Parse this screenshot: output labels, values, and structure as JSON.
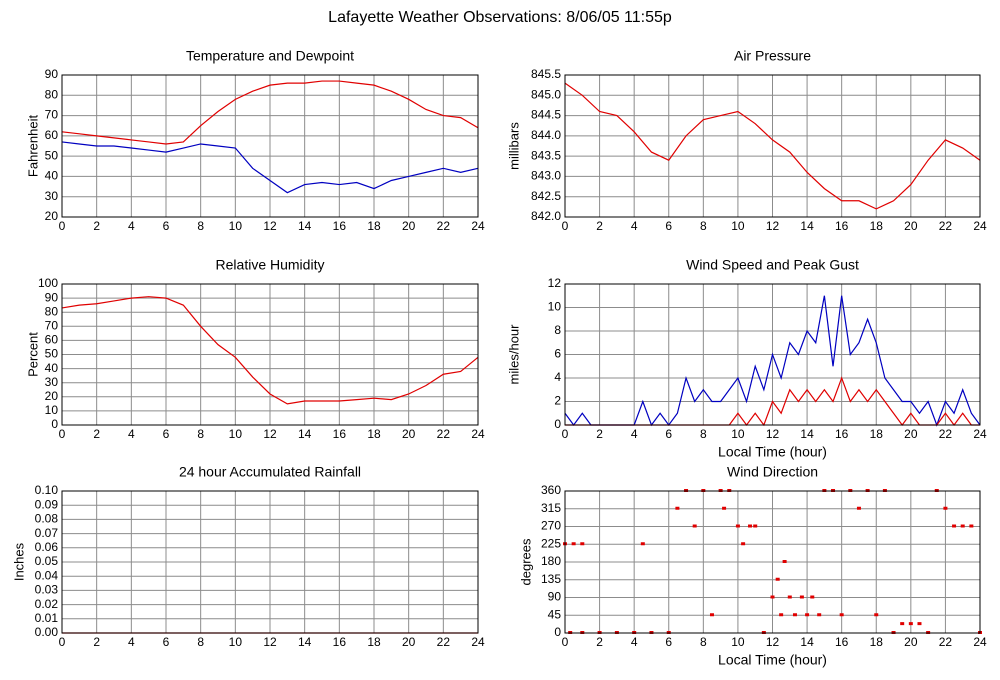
{
  "title": "Lafayette Weather Observations: 8/06/05 11:55p",
  "chart_data": [
    {
      "type": "line",
      "title": "Temperature and Dewpoint",
      "ylabel": "Fahrenheit",
      "grid": true,
      "x": [
        0,
        1,
        2,
        3,
        4,
        5,
        6,
        7,
        8,
        9,
        10,
        11,
        12,
        13,
        14,
        15,
        16,
        17,
        18,
        19,
        20,
        21,
        22,
        23,
        24
      ],
      "series": [
        {
          "color": "#e00000",
          "values": [
            62,
            61,
            60,
            59,
            58,
            57,
            56,
            57,
            65,
            72,
            78,
            82,
            85,
            86,
            86,
            87,
            87,
            86,
            85,
            82,
            78,
            73,
            70,
            69,
            64
          ]
        },
        {
          "color": "#0000c0",
          "values": [
            57,
            56,
            55,
            55,
            54,
            53,
            52,
            54,
            56,
            55,
            54,
            44,
            38,
            32,
            36,
            37,
            36,
            37,
            34,
            38,
            40,
            42,
            44,
            42,
            44
          ]
        }
      ],
      "xlim": [
        0,
        24
      ],
      "xticks": [
        0,
        2,
        4,
        6,
        8,
        10,
        12,
        14,
        16,
        18,
        20,
        22,
        24
      ],
      "ylim": [
        20,
        90
      ],
      "yticks": [
        20,
        30,
        40,
        50,
        60,
        70,
        80,
        90
      ]
    },
    {
      "type": "line",
      "title": "Air Pressure",
      "ylabel": "millibars",
      "grid": true,
      "x": [
        0,
        1,
        2,
        3,
        4,
        5,
        6,
        7,
        8,
        9,
        10,
        11,
        12,
        13,
        14,
        15,
        16,
        17,
        18,
        19,
        20,
        21,
        22,
        23,
        24
      ],
      "series": [
        {
          "color": "#e00000",
          "values": [
            845.3,
            845.0,
            844.6,
            844.5,
            844.1,
            843.6,
            843.4,
            844.0,
            844.4,
            844.5,
            844.6,
            844.3,
            843.9,
            843.6,
            843.1,
            842.7,
            842.4,
            842.4,
            842.2,
            842.4,
            842.8,
            843.4,
            843.9,
            843.7,
            843.4
          ]
        }
      ],
      "xlim": [
        0,
        24
      ],
      "xticks": [
        0,
        2,
        4,
        6,
        8,
        10,
        12,
        14,
        16,
        18,
        20,
        22,
        24
      ],
      "ylim": [
        842,
        845.5
      ],
      "yticks": [
        {
          "value": 842,
          "label": "842.0"
        },
        842.5,
        {
          "value": 843,
          "label": "843.0"
        },
        843.5,
        {
          "value": 844,
          "label": "844.0"
        },
        844.5,
        {
          "value": 845,
          "label": "845.0"
        },
        845.5
      ]
    },
    {
      "type": "line",
      "title": "Relative Humidity",
      "ylabel": "Percent",
      "grid": true,
      "x": [
        0,
        1,
        2,
        3,
        4,
        5,
        6,
        7,
        8,
        9,
        10,
        11,
        12,
        13,
        14,
        15,
        16,
        17,
        18,
        19,
        20,
        21,
        22,
        23,
        24
      ],
      "series": [
        {
          "color": "#e00000",
          "values": [
            83,
            85,
            86,
            88,
            90,
            91,
            90,
            85,
            70,
            57,
            48,
            34,
            22,
            15,
            17,
            17,
            17,
            18,
            19,
            18,
            22,
            28,
            36,
            38,
            48
          ]
        }
      ],
      "xlim": [
        0,
        24
      ],
      "xticks": [
        0,
        2,
        4,
        6,
        8,
        10,
        12,
        14,
        16,
        18,
        20,
        22,
        24
      ],
      "ylim": [
        0,
        100
      ],
      "yticks": [
        0,
        10,
        20,
        30,
        40,
        50,
        60,
        70,
        80,
        90,
        100
      ]
    },
    {
      "type": "line",
      "title": "Wind Speed and Peak Gust",
      "ylabel": "miles/hour",
      "xlabel": "Local Time (hour)",
      "grid": true,
      "x": [
        0,
        0.5,
        1,
        1.5,
        2,
        2.5,
        3,
        3.5,
        4,
        4.5,
        5,
        5.5,
        6,
        6.5,
        7,
        7.5,
        8,
        8.5,
        9,
        9.5,
        10,
        10.5,
        11,
        11.5,
        12,
        12.5,
        13,
        13.5,
        14,
        14.5,
        15,
        15.5,
        16,
        16.5,
        17,
        17.5,
        18,
        18.5,
        19,
        19.5,
        20,
        20.5,
        21,
        21.5,
        22,
        22.5,
        23,
        23.5,
        24
      ],
      "series": [
        {
          "color": "#0000c0",
          "values": [
            1,
            0,
            1,
            0,
            0,
            0,
            0,
            0,
            0,
            2,
            0,
            1,
            0,
            1,
            4,
            2,
            3,
            2,
            2,
            3,
            4,
            2,
            5,
            3,
            6,
            4,
            7,
            6,
            8,
            7,
            11,
            5,
            11,
            6,
            7,
            9,
            7,
            4,
            3,
            2,
            2,
            1,
            2,
            0,
            2,
            1,
            3,
            1,
            0
          ]
        },
        {
          "color": "#e00000",
          "values": [
            0,
            0,
            0,
            0,
            0,
            0,
            0,
            0,
            0,
            0,
            0,
            0,
            0,
            0,
            0,
            0,
            0,
            0,
            0,
            0,
            1,
            0,
            1,
            0,
            2,
            1,
            3,
            2,
            3,
            2,
            3,
            2,
            4,
            2,
            3,
            2,
            3,
            2,
            1,
            0,
            1,
            0,
            0,
            0,
            1,
            0,
            1,
            0,
            0
          ]
        }
      ],
      "xlim": [
        0,
        24
      ],
      "xticks": [
        0,
        2,
        4,
        6,
        8,
        10,
        12,
        14,
        16,
        18,
        20,
        22,
        24
      ],
      "ylim": [
        0,
        12
      ],
      "yticks": [
        0,
        2,
        4,
        6,
        8,
        10,
        12
      ]
    },
    {
      "type": "line",
      "title": "24 hour Accumulated Rainfall",
      "ylabel": "Inches",
      "grid": true,
      "x": [
        0,
        24
      ],
      "series": [
        {
          "color": "#e00000",
          "values": [
            0,
            0
          ]
        }
      ],
      "xlim": [
        0,
        24
      ],
      "xticks": [
        0,
        2,
        4,
        6,
        8,
        10,
        12,
        14,
        16,
        18,
        20,
        22,
        24
      ],
      "ylim": [
        0,
        0.1
      ],
      "yticks": [
        {
          "value": 0,
          "label": "0.00"
        },
        0.01,
        0.02,
        0.03,
        0.04,
        0.05,
        0.06,
        0.07,
        0.08,
        0.09,
        {
          "value": 0.1,
          "label": "0.10"
        }
      ]
    },
    {
      "type": "scatter",
      "title": "Wind Direction",
      "ylabel": "degrees",
      "xlabel": "Local Time (hour)",
      "grid": true,
      "x": [
        0,
        0.5,
        1,
        0.3,
        1,
        2,
        3,
        4,
        4.5,
        5,
        6,
        6.5,
        7,
        7.5,
        8,
        8.5,
        9,
        9.2,
        9.5,
        10,
        10.3,
        10.7,
        11,
        11.5,
        12,
        12.3,
        12.5,
        12.7,
        13,
        13.3,
        13.7,
        14,
        14.3,
        14.7,
        15,
        15.5,
        16,
        16.5,
        17,
        17.5,
        18,
        18.5,
        19,
        19.5,
        20,
        20.5,
        21,
        21.5,
        22,
        22.5,
        23,
        23.5,
        24
      ],
      "series": [
        {
          "color": "#e00000",
          "values": [
            225,
            225,
            225,
            0,
            0,
            0,
            0,
            0,
            225,
            0,
            0,
            315,
            360,
            270,
            360,
            45,
            360,
            315,
            360,
            270,
            225,
            270,
            270,
            0,
            90,
            135,
            45,
            180,
            90,
            45,
            90,
            45,
            90,
            45,
            360,
            360,
            45,
            360,
            315,
            360,
            45,
            360,
            0,
            22.5,
            22.5,
            22.5,
            0,
            360,
            315,
            270,
            270,
            270,
            0
          ]
        }
      ],
      "xlim": [
        0,
        24
      ],
      "xticks": [
        0,
        2,
        4,
        6,
        8,
        10,
        12,
        14,
        16,
        18,
        20,
        22,
        24
      ],
      "ylim": [
        0,
        360
      ],
      "yticks": [
        0,
        45,
        90,
        135,
        180,
        225,
        270,
        315,
        360
      ]
    }
  ]
}
